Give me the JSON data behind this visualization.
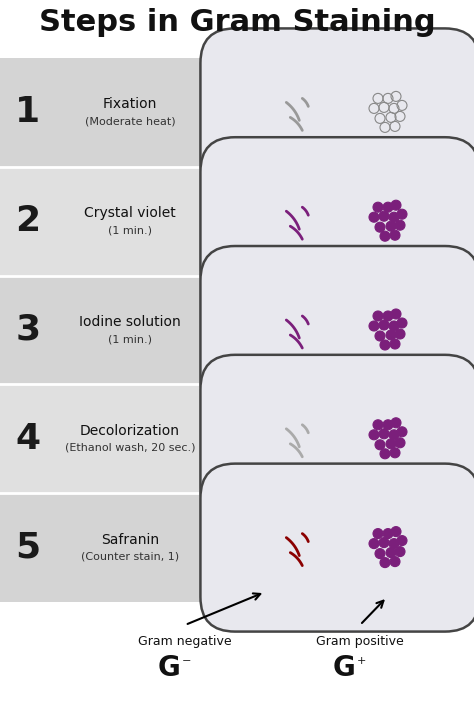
{
  "title": "Steps in Gram Staining",
  "title_fontsize": 22,
  "background_color": "#ffffff",
  "steps": [
    {
      "num": "1",
      "name": "Fixation",
      "sub": "(Moderate heat)",
      "rod_color": "#999999",
      "cocci_color": "#888888",
      "rod_outline": true,
      "cocci_outline": true,
      "row_bg": "#d4d4d4"
    },
    {
      "num": "2",
      "name": "Crystal violet",
      "sub": "(1 min.)",
      "rod_color": "#7B1F7B",
      "cocci_color": "#7B1F7B",
      "rod_outline": false,
      "cocci_outline": false,
      "row_bg": "#e0e0e0"
    },
    {
      "num": "3",
      "name": "Iodine solution",
      "sub": "(1 min.)",
      "rod_color": "#7B1F7B",
      "cocci_color": "#7B1F7B",
      "rod_outline": false,
      "cocci_outline": false,
      "row_bg": "#d4d4d4"
    },
    {
      "num": "4",
      "name": "Decolorization",
      "sub": "(Ethanol wash, 20 sec.)",
      "rod_color": "#aaaaaa",
      "cocci_color": "#7B1F7B",
      "rod_outline": true,
      "cocci_outline": false,
      "row_bg": "#e0e0e0"
    },
    {
      "num": "5",
      "name": "Safranin",
      "sub": "(Counter stain, 1)",
      "rod_color": "#8B0000",
      "cocci_color": "#7B1F7B",
      "rod_outline": false,
      "cocci_outline": false,
      "row_bg": "#d4d4d4"
    }
  ],
  "gram_negative_label": "Gram negative",
  "gram_positive_label": "Gram positive",
  "cell_bg": "#e8e8ee",
  "cell_border": "#444444",
  "cell_border_lw": 1.8
}
